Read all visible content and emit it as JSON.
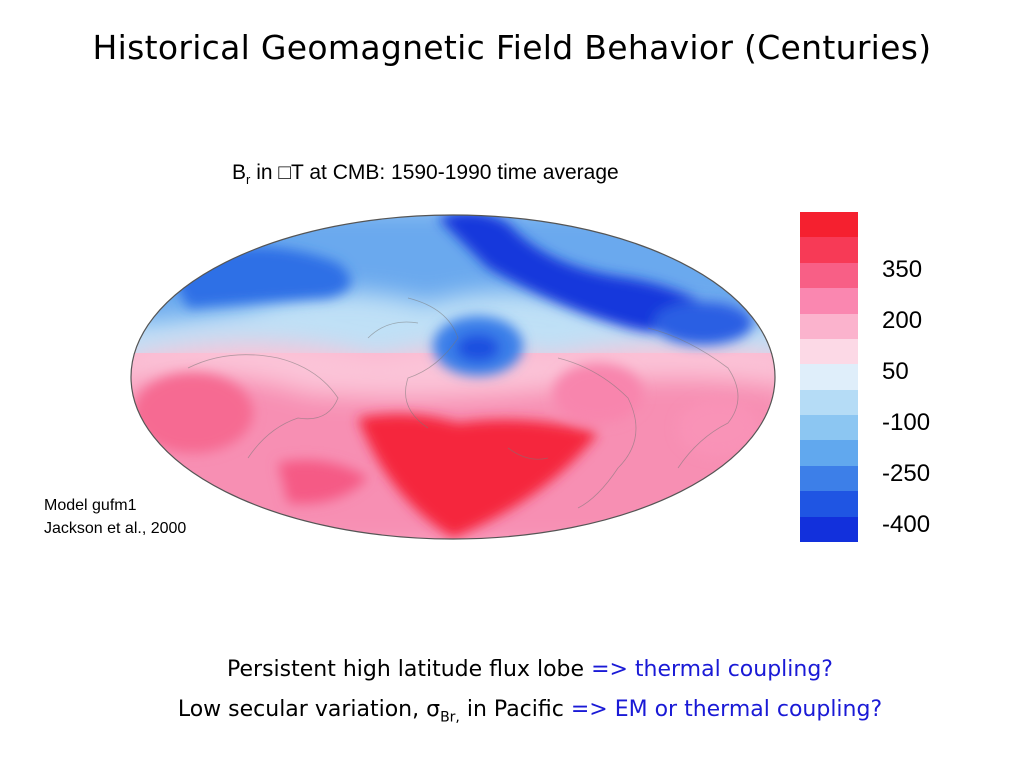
{
  "slide": {
    "title": "Historical Geomagnetic Field Behavior (Centuries)"
  },
  "map": {
    "caption_main": "B",
    "caption_sub": "r",
    "caption_rest": " in □T at CMB:  1590-1990 time average",
    "colorbar": {
      "colors": [
        "#f5202f",
        "#f73a56",
        "#f85f86",
        "#fa87b0",
        "#fbb3cd",
        "#fcd9e6",
        "#dfeefa",
        "#b5dcf6",
        "#8cc6f2",
        "#61a8ee",
        "#3d7fe8",
        "#1f55e3",
        "#1230dc"
      ],
      "tick_labels": [
        "350",
        "200",
        "50",
        "-100",
        "-250",
        "-400"
      ]
    }
  },
  "credit": {
    "line1": "Model gufm1",
    "line2": "Jackson et al., 2000"
  },
  "bullets": {
    "line1_text": "Persistent high latitude flux lobe ",
    "line1_blue": "=> thermal coupling?",
    "line2_text": "Low secular variation, ",
    "line2_sigma": "σ",
    "line2_sub": "Br,",
    "line2_text2": " in Pacific ",
    "line2_blue": "=> EM or thermal coupling?"
  }
}
